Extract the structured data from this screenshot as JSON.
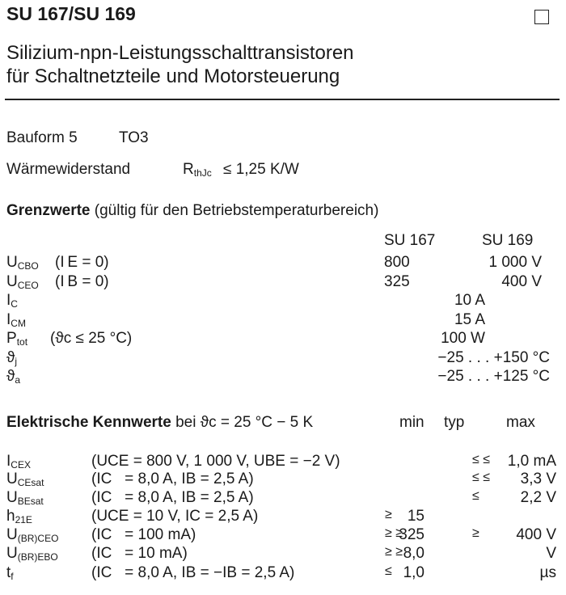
{
  "header": {
    "title": "SU 167/SU 169",
    "subtitle_line1": "Silizium-npn-Leistungsschalttransistoren",
    "subtitle_line2": "für Schaltnetzteile und Motorsteuerung"
  },
  "package": {
    "bauform_label": "Bauform 5",
    "bauform_value": "TO3",
    "thermal_label": "Wärmewiderstand",
    "thermal_symbol": "R",
    "thermal_symbol_sub": "thJc",
    "thermal_value": "≤  1,25 K/W"
  },
  "limits": {
    "heading": "Grenzwerte",
    "heading_note": "(gültig für den Betriebstemperaturbereich)",
    "col1": "SU 167",
    "col2": "SU 169",
    "rows": [
      {
        "sym": "U",
        "sub": "CBO",
        "cond": "(I E = 0)",
        "v1": "800",
        "v2": "1 000 V",
        "both": ""
      },
      {
        "sym": "U",
        "sub": "CEO",
        "cond": "(I B = 0)",
        "v1": "325",
        "v2": "400 V",
        "both": ""
      },
      {
        "sym": "I",
        "sub": "C",
        "cond": "",
        "v1": "",
        "v2": "",
        "both": "10 A"
      },
      {
        "sym": "I",
        "sub": "CM",
        "cond": "",
        "v1": "",
        "v2": "",
        "both": "15 A"
      },
      {
        "sym": "P",
        "sub": "tot",
        "cond": "(ϑc ≤ 25 °C)",
        "v1": "",
        "v2": "",
        "both": "100 W"
      },
      {
        "sym": "ϑ",
        "sub": "j",
        "cond": "",
        "v1": "",
        "v2": "",
        "both": "−25 . . . +150 °C"
      },
      {
        "sym": "ϑ",
        "sub": "a",
        "cond": "",
        "v1": "",
        "v2": "",
        "both": "−25 . . . +125 °C"
      }
    ]
  },
  "electrical": {
    "heading": "Elektrische Kennwerte",
    "heading_note": "bei ϑc = 25 °C − 5 K",
    "col_min": "min",
    "col_typ": "typ",
    "col_max": "max",
    "rows": [
      {
        "sym": "I",
        "sub": "CEX",
        "cond": "(UCE = 800 V, 1 000 V, UBE = −2 V)",
        "minop": "",
        "min": "",
        "maxop": "≤ ≤",
        "max": "1,0 mA"
      },
      {
        "sym": "U",
        "sub": "CEsat",
        "cond": "(IC   = 8,0 A, IB = 2,5 A)",
        "minop": "",
        "min": "",
        "maxop": "≤ ≤",
        "max": "3,3 V"
      },
      {
        "sym": "U",
        "sub": "BEsat",
        "cond": "(IC   = 8,0 A, IB = 2,5 A)",
        "minop": "",
        "min": "",
        "maxop": "≤",
        "max": "2,2 V"
      },
      {
        "sym": "h",
        "sub": "21E",
        "cond": "(UCE = 10 V, IC = 2,5 A)",
        "minop": "≥",
        "min": "15",
        "maxop": "",
        "max": ""
      },
      {
        "sym": "U",
        "sub": "(BR)CEO",
        "cond": "(IC   = 100 mA)",
        "minop": "≥ ≥",
        "min": "325",
        "maxop": "≥",
        "max": "400 V"
      },
      {
        "sym": "U",
        "sub": "(BR)EBO",
        "cond": "(IC   = 10 mA)",
        "minop": "≥ ≥",
        "min": "8,0",
        "maxop": "",
        "max": "V"
      },
      {
        "sym": "t",
        "sub": "f",
        "cond": "(IC   = 8,0 A, IB = −IB = 2,5 A)",
        "minop": "≤",
        "min": "1,0",
        "maxop": "",
        "max": "µs"
      }
    ]
  }
}
